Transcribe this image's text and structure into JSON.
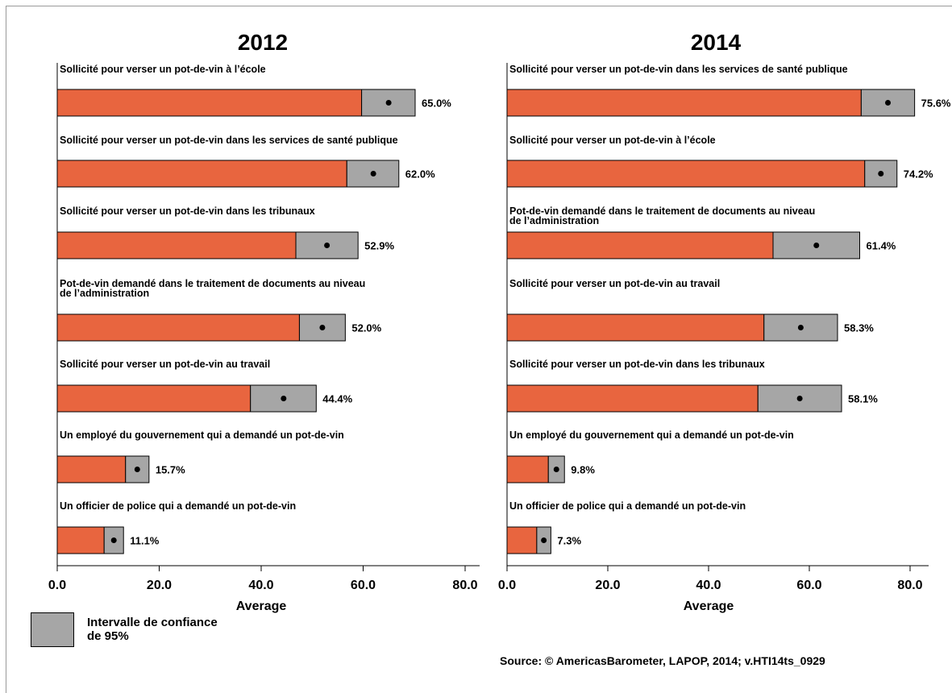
{
  "chart_data": [
    {
      "type": "bar",
      "title": "2012",
      "xlabel": "Average",
      "xlim": [
        0,
        80
      ],
      "xticks": [
        "0.0",
        "20.0",
        "40.0",
        "60.0",
        "80.0"
      ],
      "series": [
        {
          "category": "Sollicité pour verser un pot-de-vin à l’école",
          "value": 65.0,
          "ci": [
            59.7,
            70.2
          ],
          "label": "65.0%"
        },
        {
          "category": "Sollicité pour verser un pot-de-vin dans les services de santé publique",
          "value": 62.0,
          "ci": [
            56.8,
            67.0
          ],
          "label": "62.0%"
        },
        {
          "category": "Sollicité pour verser un pot-de-vin dans les tribunaux",
          "value": 52.9,
          "ci": [
            46.8,
            59.0
          ],
          "label": "52.9%"
        },
        {
          "category": "Pot-de-vin demandé dans le traitement de documents au niveau\nde l’administration",
          "value": 52.0,
          "ci": [
            47.5,
            56.5
          ],
          "label": "52.0%"
        },
        {
          "category": "Sollicité pour verser un pot-de-vin au travail",
          "value": 44.4,
          "ci": [
            37.9,
            50.8
          ],
          "label": "44.4%"
        },
        {
          "category": "Un employé du gouvernement qui a demandé un pot-de-vin",
          "value": 15.7,
          "ci": [
            13.4,
            18.0
          ],
          "label": "15.7%"
        },
        {
          "category": "Un officier de police qui a demandé un pot-de-vin",
          "value": 11.1,
          "ci": [
            9.2,
            13.0
          ],
          "label": "11.1%"
        }
      ]
    },
    {
      "type": "bar",
      "title": "2014",
      "xlabel": "Average",
      "xlim": [
        0,
        80
      ],
      "xticks": [
        "0.0",
        "20.0",
        "40.0",
        "60.0",
        "80.0"
      ],
      "series": [
        {
          "category": "Sollicité pour verser un pot-de-vin dans les services de santé publique",
          "value": 75.6,
          "ci": [
            70.3,
            80.9
          ],
          "label": "75.6%"
        },
        {
          "category": "Sollicité pour verser un pot-de-vin à l’école",
          "value": 74.2,
          "ci": [
            71.0,
            77.4
          ],
          "label": "74.2%"
        },
        {
          "category": "Pot-de-vin demandé dans le traitement de documents au niveau\nde l’administration",
          "value": 61.4,
          "ci": [
            52.8,
            70.0
          ],
          "label": "61.4%"
        },
        {
          "category": "Sollicité pour verser un pot-de-vin au travail",
          "value": 58.3,
          "ci": [
            51.0,
            65.6
          ],
          "label": "58.3%"
        },
        {
          "category": "Sollicité pour verser un pot-de-vin dans les tribunaux",
          "value": 58.1,
          "ci": [
            49.8,
            66.4
          ],
          "label": "58.1%"
        },
        {
          "category": "Un employé du gouvernement qui a demandé un pot-de-vin",
          "value": 9.8,
          "ci": [
            8.2,
            11.4
          ],
          "label": "9.8%"
        },
        {
          "category": "Un officier de police qui a demandé un pot-de-vin",
          "value": 7.3,
          "ci": [
            5.9,
            8.7
          ],
          "label": "7.3%"
        }
      ]
    }
  ],
  "legend": {
    "ci_label": "Intervalle de confiance\nde 95%"
  },
  "source": "Source: © AmericasBarometer, LAPOP, 2014; v.HTI14ts_0929",
  "colors": {
    "bar": "#e8653f",
    "ci": "#a6a6a6",
    "point": "#000000",
    "axis": "#000000"
  }
}
